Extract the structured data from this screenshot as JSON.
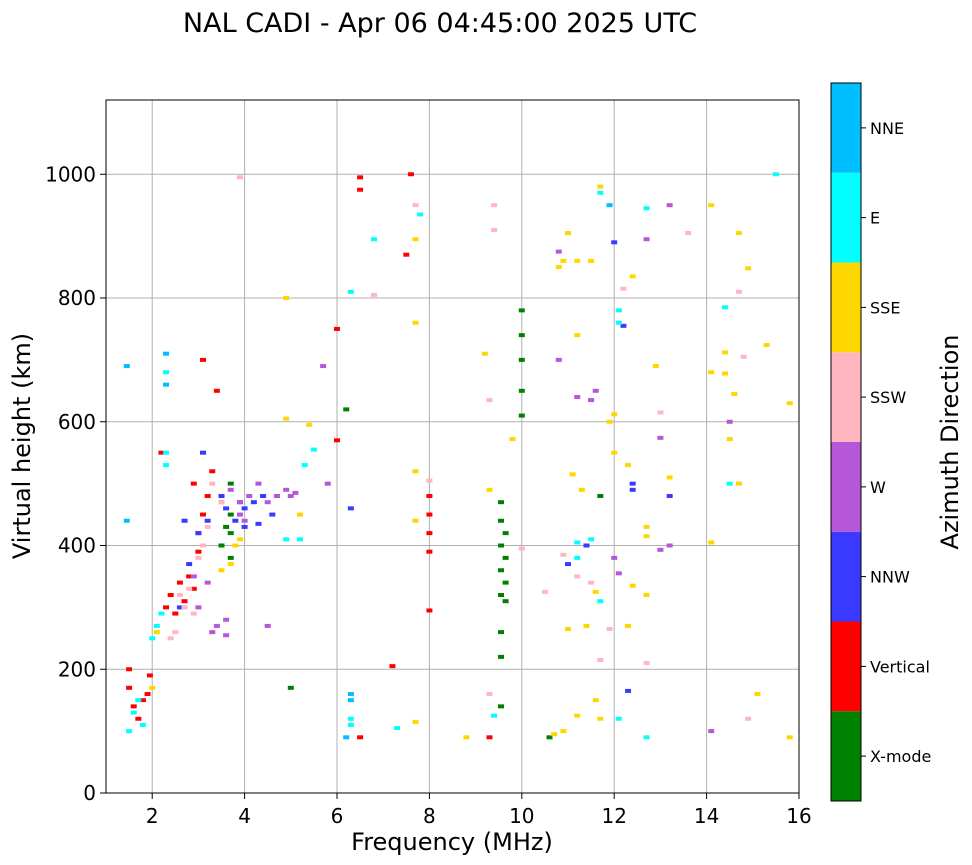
{
  "chart_data": {
    "type": "scatter",
    "title": "NAL CADI - Apr 06 04:45:00 2025 UTC",
    "xlabel": "Frequency (MHz)",
    "ylabel": "Virtual height (km)",
    "xlim": [
      1,
      16
    ],
    "ylim": [
      0,
      1120
    ],
    "xticks": [
      2,
      4,
      6,
      8,
      10,
      12,
      14,
      16
    ],
    "yticks": [
      0,
      200,
      400,
      600,
      800,
      1000
    ],
    "grid": true,
    "colorbar": {
      "label": "Azimuth Direction",
      "categories": [
        {
          "name": "X-mode",
          "color": "#008000"
        },
        {
          "name": "Vertical",
          "color": "#ff0000"
        },
        {
          "name": "NNW",
          "color": "#3a3aff"
        },
        {
          "name": "W",
          "color": "#b656d8"
        },
        {
          "name": "SSW",
          "color": "#ffb6c1"
        },
        {
          "name": "SSE",
          "color": "#ffd700"
        },
        {
          "name": "E",
          "color": "#00ffff"
        },
        {
          "name": "NNE",
          "color": "#00bfff"
        }
      ]
    },
    "series": [
      {
        "name": "X-mode",
        "points": [
          [
            9.55,
            140
          ],
          [
            9.55,
            220
          ],
          [
            9.55,
            260
          ],
          [
            9.55,
            320
          ],
          [
            9.55,
            360
          ],
          [
            9.55,
            400
          ],
          [
            9.55,
            440
          ],
          [
            9.55,
            470
          ],
          [
            9.65,
            310
          ],
          [
            9.65,
            340
          ],
          [
            9.65,
            380
          ],
          [
            9.65,
            420
          ],
          [
            10.0,
            610
          ],
          [
            10.0,
            650
          ],
          [
            10.0,
            700
          ],
          [
            10.0,
            740
          ],
          [
            10.0,
            780
          ],
          [
            3.7,
            380
          ],
          [
            3.7,
            420
          ],
          [
            3.7,
            450
          ],
          [
            3.7,
            500
          ],
          [
            3.6,
            430
          ],
          [
            3.5,
            400
          ],
          [
            6.2,
            620
          ],
          [
            5.0,
            170
          ],
          [
            10.6,
            90
          ],
          [
            11.7,
            480
          ]
        ]
      },
      {
        "name": "Vertical",
        "points": [
          [
            1.5,
            200
          ],
          [
            1.5,
            170
          ],
          [
            1.6,
            140
          ],
          [
            1.7,
            120
          ],
          [
            1.8,
            150
          ],
          [
            1.9,
            160
          ],
          [
            1.95,
            190
          ],
          [
            2.3,
            300
          ],
          [
            2.4,
            320
          ],
          [
            2.5,
            290
          ],
          [
            2.6,
            340
          ],
          [
            2.7,
            310
          ],
          [
            2.8,
            350
          ],
          [
            2.9,
            330
          ],
          [
            3.0,
            420
          ],
          [
            3.1,
            450
          ],
          [
            3.2,
            480
          ],
          [
            3.3,
            520
          ],
          [
            3.1,
            700
          ],
          [
            3.4,
            650
          ],
          [
            2.9,
            500
          ],
          [
            3.0,
            390
          ],
          [
            8.0,
            390
          ],
          [
            8.0,
            420
          ],
          [
            8.0,
            450
          ],
          [
            8.0,
            480
          ],
          [
            8.0,
            295
          ],
          [
            6.0,
            570
          ],
          [
            6.0,
            750
          ],
          [
            7.6,
            1000
          ],
          [
            6.5,
            995
          ],
          [
            6.5,
            975
          ],
          [
            7.5,
            870
          ],
          [
            7.2,
            205
          ],
          [
            6.5,
            90
          ],
          [
            9.3,
            90
          ],
          [
            2.2,
            550
          ]
        ]
      },
      {
        "name": "NNW",
        "points": [
          [
            3.8,
            440
          ],
          [
            4.0,
            460
          ],
          [
            4.2,
            470
          ],
          [
            4.4,
            480
          ],
          [
            4.6,
            450
          ],
          [
            4.3,
            435
          ],
          [
            4.0,
            430
          ],
          [
            3.9,
            470
          ],
          [
            3.5,
            480
          ],
          [
            3.6,
            460
          ],
          [
            3.2,
            440
          ],
          [
            3.0,
            420
          ],
          [
            2.8,
            370
          ],
          [
            2.6,
            300
          ],
          [
            3.1,
            550
          ],
          [
            6.3,
            460
          ],
          [
            12.0,
            890
          ],
          [
            11.0,
            370
          ],
          [
            12.4,
            500
          ],
          [
            13.2,
            480
          ],
          [
            11.4,
            400
          ],
          [
            12.3,
            165
          ],
          [
            12.4,
            490
          ],
          [
            12.2,
            755
          ],
          [
            2.7,
            440
          ]
        ]
      },
      {
        "name": "W",
        "points": [
          [
            3.5,
            470
          ],
          [
            3.7,
            490
          ],
          [
            3.9,
            470
          ],
          [
            4.1,
            480
          ],
          [
            4.3,
            500
          ],
          [
            4.5,
            470
          ],
          [
            4.7,
            480
          ],
          [
            4.9,
            490
          ],
          [
            5.0,
            480
          ],
          [
            5.1,
            485
          ],
          [
            3.9,
            450
          ],
          [
            4.0,
            440
          ],
          [
            3.4,
            270
          ],
          [
            3.3,
            260
          ],
          [
            3.6,
            255
          ],
          [
            3.6,
            280
          ],
          [
            4.5,
            270
          ],
          [
            3.2,
            340
          ],
          [
            3.0,
            300
          ],
          [
            2.9,
            350
          ],
          [
            5.8,
            500
          ],
          [
            5.7,
            690
          ],
          [
            11.5,
            635
          ],
          [
            13.0,
            574
          ],
          [
            13.2,
            400
          ],
          [
            13.0,
            393
          ],
          [
            12.7,
            895
          ],
          [
            13.2,
            950
          ],
          [
            14.1,
            100
          ],
          [
            10.8,
            700
          ],
          [
            14.5,
            600
          ],
          [
            10.8,
            875
          ],
          [
            12.0,
            380
          ],
          [
            12.1,
            355
          ],
          [
            11.2,
            640
          ],
          [
            11.6,
            650
          ]
        ]
      },
      {
        "name": "SSW",
        "points": [
          [
            2.6,
            320
          ],
          [
            2.7,
            300
          ],
          [
            2.8,
            330
          ],
          [
            2.9,
            290
          ],
          [
            3.0,
            380
          ],
          [
            3.1,
            400
          ],
          [
            3.2,
            430
          ],
          [
            3.3,
            500
          ],
          [
            3.5,
            470
          ],
          [
            2.5,
            260
          ],
          [
            2.4,
            250
          ],
          [
            8.0,
            505
          ],
          [
            10.0,
            395
          ],
          [
            10.5,
            325
          ],
          [
            12.7,
            210
          ],
          [
            13.0,
            615
          ],
          [
            13.6,
            905
          ],
          [
            14.9,
            120
          ],
          [
            14.8,
            705
          ],
          [
            12.2,
            815
          ],
          [
            11.9,
            265
          ],
          [
            11.7,
            215
          ],
          [
            9.3,
            160
          ],
          [
            9.3,
            635
          ],
          [
            9.4,
            910
          ],
          [
            9.4,
            950
          ],
          [
            10.9,
            385
          ],
          [
            11.5,
            340
          ],
          [
            14.7,
            810
          ],
          [
            6.8,
            805
          ],
          [
            7.7,
            950
          ],
          [
            3.9,
            995
          ],
          [
            11.2,
            350
          ]
        ]
      },
      {
        "name": "SSE",
        "points": [
          [
            2.0,
            170
          ],
          [
            2.1,
            260
          ],
          [
            3.5,
            360
          ],
          [
            3.7,
            370
          ],
          [
            3.8,
            400
          ],
          [
            3.9,
            410
          ],
          [
            4.9,
            800
          ],
          [
            4.9,
            605
          ],
          [
            5.2,
            450
          ],
          [
            5.4,
            595
          ],
          [
            7.7,
            760
          ],
          [
            7.7,
            440
          ],
          [
            7.7,
            520
          ],
          [
            7.7,
            895
          ],
          [
            7.7,
            115
          ],
          [
            8.8,
            90
          ],
          [
            9.2,
            710
          ],
          [
            9.3,
            490
          ],
          [
            9.8,
            572
          ],
          [
            10.7,
            95
          ],
          [
            10.9,
            100
          ],
          [
            11.0,
            905
          ],
          [
            10.8,
            850
          ],
          [
            11.2,
            860
          ],
          [
            11.5,
            860
          ],
          [
            11.2,
            740
          ],
          [
            11.1,
            515
          ],
          [
            11.3,
            490
          ],
          [
            11.4,
            270
          ],
          [
            11.0,
            265
          ],
          [
            11.2,
            125
          ],
          [
            11.7,
            120
          ],
          [
            11.6,
            150
          ],
          [
            11.6,
            325
          ],
          [
            11.9,
            600
          ],
          [
            12.0,
            550
          ],
          [
            12.0,
            612
          ],
          [
            12.3,
            270
          ],
          [
            12.3,
            530
          ],
          [
            12.4,
            835
          ],
          [
            12.7,
            430
          ],
          [
            12.7,
            415
          ],
          [
            12.7,
            320
          ],
          [
            12.4,
            335
          ],
          [
            12.9,
            690
          ],
          [
            13.2,
            510
          ],
          [
            14.1,
            680
          ],
          [
            14.1,
            405
          ],
          [
            14.4,
            678
          ],
          [
            14.4,
            712
          ],
          [
            14.5,
            572
          ],
          [
            14.6,
            645
          ],
          [
            14.7,
            905
          ],
          [
            14.7,
            500
          ],
          [
            14.9,
            848
          ],
          [
            15.1,
            160
          ],
          [
            15.3,
            724
          ],
          [
            15.8,
            630
          ],
          [
            15.8,
            90
          ],
          [
            11.7,
            980
          ],
          [
            14.1,
            950
          ],
          [
            10.9,
            860
          ]
        ]
      },
      {
        "name": "E",
        "points": [
          [
            1.5,
            100
          ],
          [
            1.6,
            130
          ],
          [
            1.7,
            150
          ],
          [
            1.8,
            110
          ],
          [
            2.0,
            250
          ],
          [
            2.1,
            270
          ],
          [
            2.2,
            290
          ],
          [
            2.3,
            680
          ],
          [
            2.3,
            530
          ],
          [
            2.3,
            550
          ],
          [
            5.3,
            530
          ],
          [
            5.2,
            410
          ],
          [
            4.9,
            410
          ],
          [
            5.5,
            555
          ],
          [
            6.3,
            810
          ],
          [
            6.3,
            120
          ],
          [
            6.3,
            110
          ],
          [
            6.8,
            895
          ],
          [
            7.3,
            105
          ],
          [
            7.8,
            935
          ],
          [
            9.4,
            125
          ],
          [
            11.5,
            410
          ],
          [
            11.2,
            380
          ],
          [
            11.2,
            405
          ],
          [
            11.7,
            310
          ],
          [
            12.1,
            780
          ],
          [
            12.1,
            760
          ],
          [
            12.1,
            120
          ],
          [
            12.7,
            945
          ],
          [
            12.7,
            90
          ],
          [
            14.5,
            500
          ],
          [
            14.4,
            785
          ],
          [
            15.5,
            1000
          ],
          [
            11.7,
            970
          ]
        ]
      },
      {
        "name": "NNE",
        "points": [
          [
            1.45,
            690
          ],
          [
            1.45,
            440
          ],
          [
            2.3,
            710
          ],
          [
            2.3,
            660
          ],
          [
            6.3,
            160
          ],
          [
            6.3,
            150
          ],
          [
            6.2,
            90
          ],
          [
            11.9,
            950
          ]
        ]
      }
    ]
  }
}
